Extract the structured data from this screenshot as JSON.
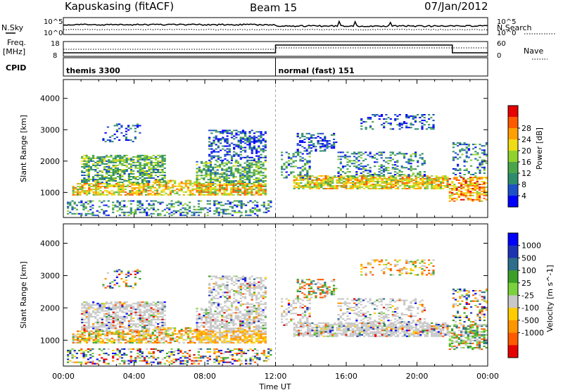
{
  "header": {
    "station": "Kapuskasing (fitACF)",
    "beam": "Beam 15",
    "date": "07/Jan/2012"
  },
  "mini_panels": {
    "sky_label": "N.Sky",
    "search_label": "N.Search",
    "freq_label_1": "Freq.",
    "freq_label_2": "[MHz]",
    "nave_label": "Nave",
    "cpid_label": "CPID",
    "sky_ticks": [
      "10^5",
      "10^0"
    ],
    "search_ticks": [
      "10^5",
      "10^0"
    ],
    "freq_ticks": [
      "18",
      "8"
    ],
    "nave_ticks": [
      "60",
      "0"
    ]
  },
  "cpid": {
    "segments": [
      {
        "label": "themis 3300",
        "start": 0,
        "end": 12
      },
      {
        "label": "normal (fast) 151",
        "start": 12,
        "end": 24
      }
    ]
  },
  "colors": {
    "power": [
      "#0000ff",
      "#1e50c8",
      "#2d8c6e",
      "#4aa54a",
      "#8fd22e",
      "#f0dc14",
      "#ffa000",
      "#ff5a00",
      "#e60000"
    ],
    "velocity": [
      "#e60000",
      "#ff5a00",
      "#ff9600",
      "#ffcc00",
      "#c8c8c8",
      "#7ad23c",
      "#3ca028",
      "#2d6e8c",
      "#1e32b4",
      "#0000ff"
    ],
    "ground_scatter": "#c8c8c8"
  },
  "chart_data": [
    {
      "type": "heatmap",
      "name": "power",
      "xlabel": "",
      "ylabel": "Slant Range [km]",
      "xlim": [
        0,
        24
      ],
      "ylim": [
        200,
        4600
      ],
      "yticks": [
        "1000",
        "2000",
        "3000",
        "4000"
      ],
      "ytick_values": [
        1000,
        2000,
        3000,
        4000
      ],
      "colorbar_label": "Power [dB]",
      "colorbar_ticks": [
        "4",
        "8",
        "12",
        "16",
        "20",
        "24",
        "28"
      ]
    },
    {
      "type": "heatmap",
      "name": "velocity",
      "xlabel": "Time UT",
      "ylabel": "Slant Range [km]",
      "xlim": [
        0,
        24
      ],
      "ylim": [
        200,
        4600
      ],
      "yticks": [
        "1000",
        "2000",
        "3000",
        "4000"
      ],
      "ytick_values": [
        1000,
        2000,
        3000,
        4000
      ],
      "xticks": [
        "00:00",
        "04:00",
        "08:00",
        "12:00",
        "16:00",
        "20:00",
        "00:00"
      ],
      "xtick_values": [
        0,
        4,
        8,
        12,
        16,
        20,
        24
      ],
      "colorbar_label": "Velocity [m s^-1]",
      "colorbar_ticks": [
        "1000",
        "500",
        "100",
        "25",
        "-25",
        "-100",
        "-500",
        "-1000"
      ]
    }
  ]
}
